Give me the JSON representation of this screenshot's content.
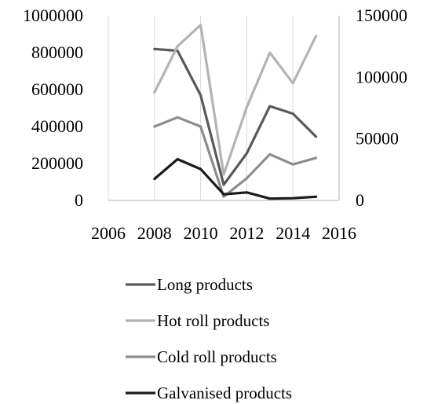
{
  "chart_data": {
    "type": "line",
    "title": "",
    "xlabel": "",
    "ylabel": "",
    "x_range": [
      2006,
      2016
    ],
    "x_ticks": [
      "2006",
      "2008",
      "2010",
      "2012",
      "2014",
      "2016"
    ],
    "y_left_range": [
      0,
      1000000
    ],
    "y_left_ticks": [
      "0",
      "200000",
      "400000",
      "600000",
      "800000",
      "1000000"
    ],
    "y_right_range": [
      0,
      150000
    ],
    "y_right_ticks": [
      "0",
      "50000",
      "100000",
      "150000"
    ],
    "grid": "vertical",
    "legend_position": "bottom",
    "series": [
      {
        "name": "Long products",
        "axis": "left",
        "color": "#595959",
        "x": [
          2008,
          2009,
          2010,
          2011,
          2012,
          2013,
          2014,
          2015
        ],
        "values": [
          820000,
          810000,
          570000,
          85000,
          255000,
          510000,
          470000,
          345000
        ]
      },
      {
        "name": "Hot roll products",
        "axis": "left",
        "color": "#b3b3b3",
        "x": [
          2008,
          2009,
          2010,
          2011,
          2012,
          2013,
          2014,
          2015
        ],
        "values": [
          585000,
          835000,
          950000,
          140000,
          505000,
          800000,
          635000,
          890000
        ]
      },
      {
        "name": "Cold roll products",
        "axis": "left",
        "color": "#8c8c8c",
        "x": [
          2008,
          2009,
          2010,
          2011,
          2012,
          2013,
          2014,
          2015
        ],
        "values": [
          400000,
          450000,
          400000,
          20000,
          120000,
          250000,
          195000,
          230000
        ]
      },
      {
        "name": "Galvanised products",
        "axis": "right",
        "color": "#1a1a1a",
        "x": [
          2008,
          2009,
          2010,
          2011,
          2012,
          2013,
          2014,
          2015
        ],
        "values": [
          17500,
          33500,
          25500,
          5000,
          6500,
          1500,
          1800,
          3000
        ]
      }
    ]
  }
}
